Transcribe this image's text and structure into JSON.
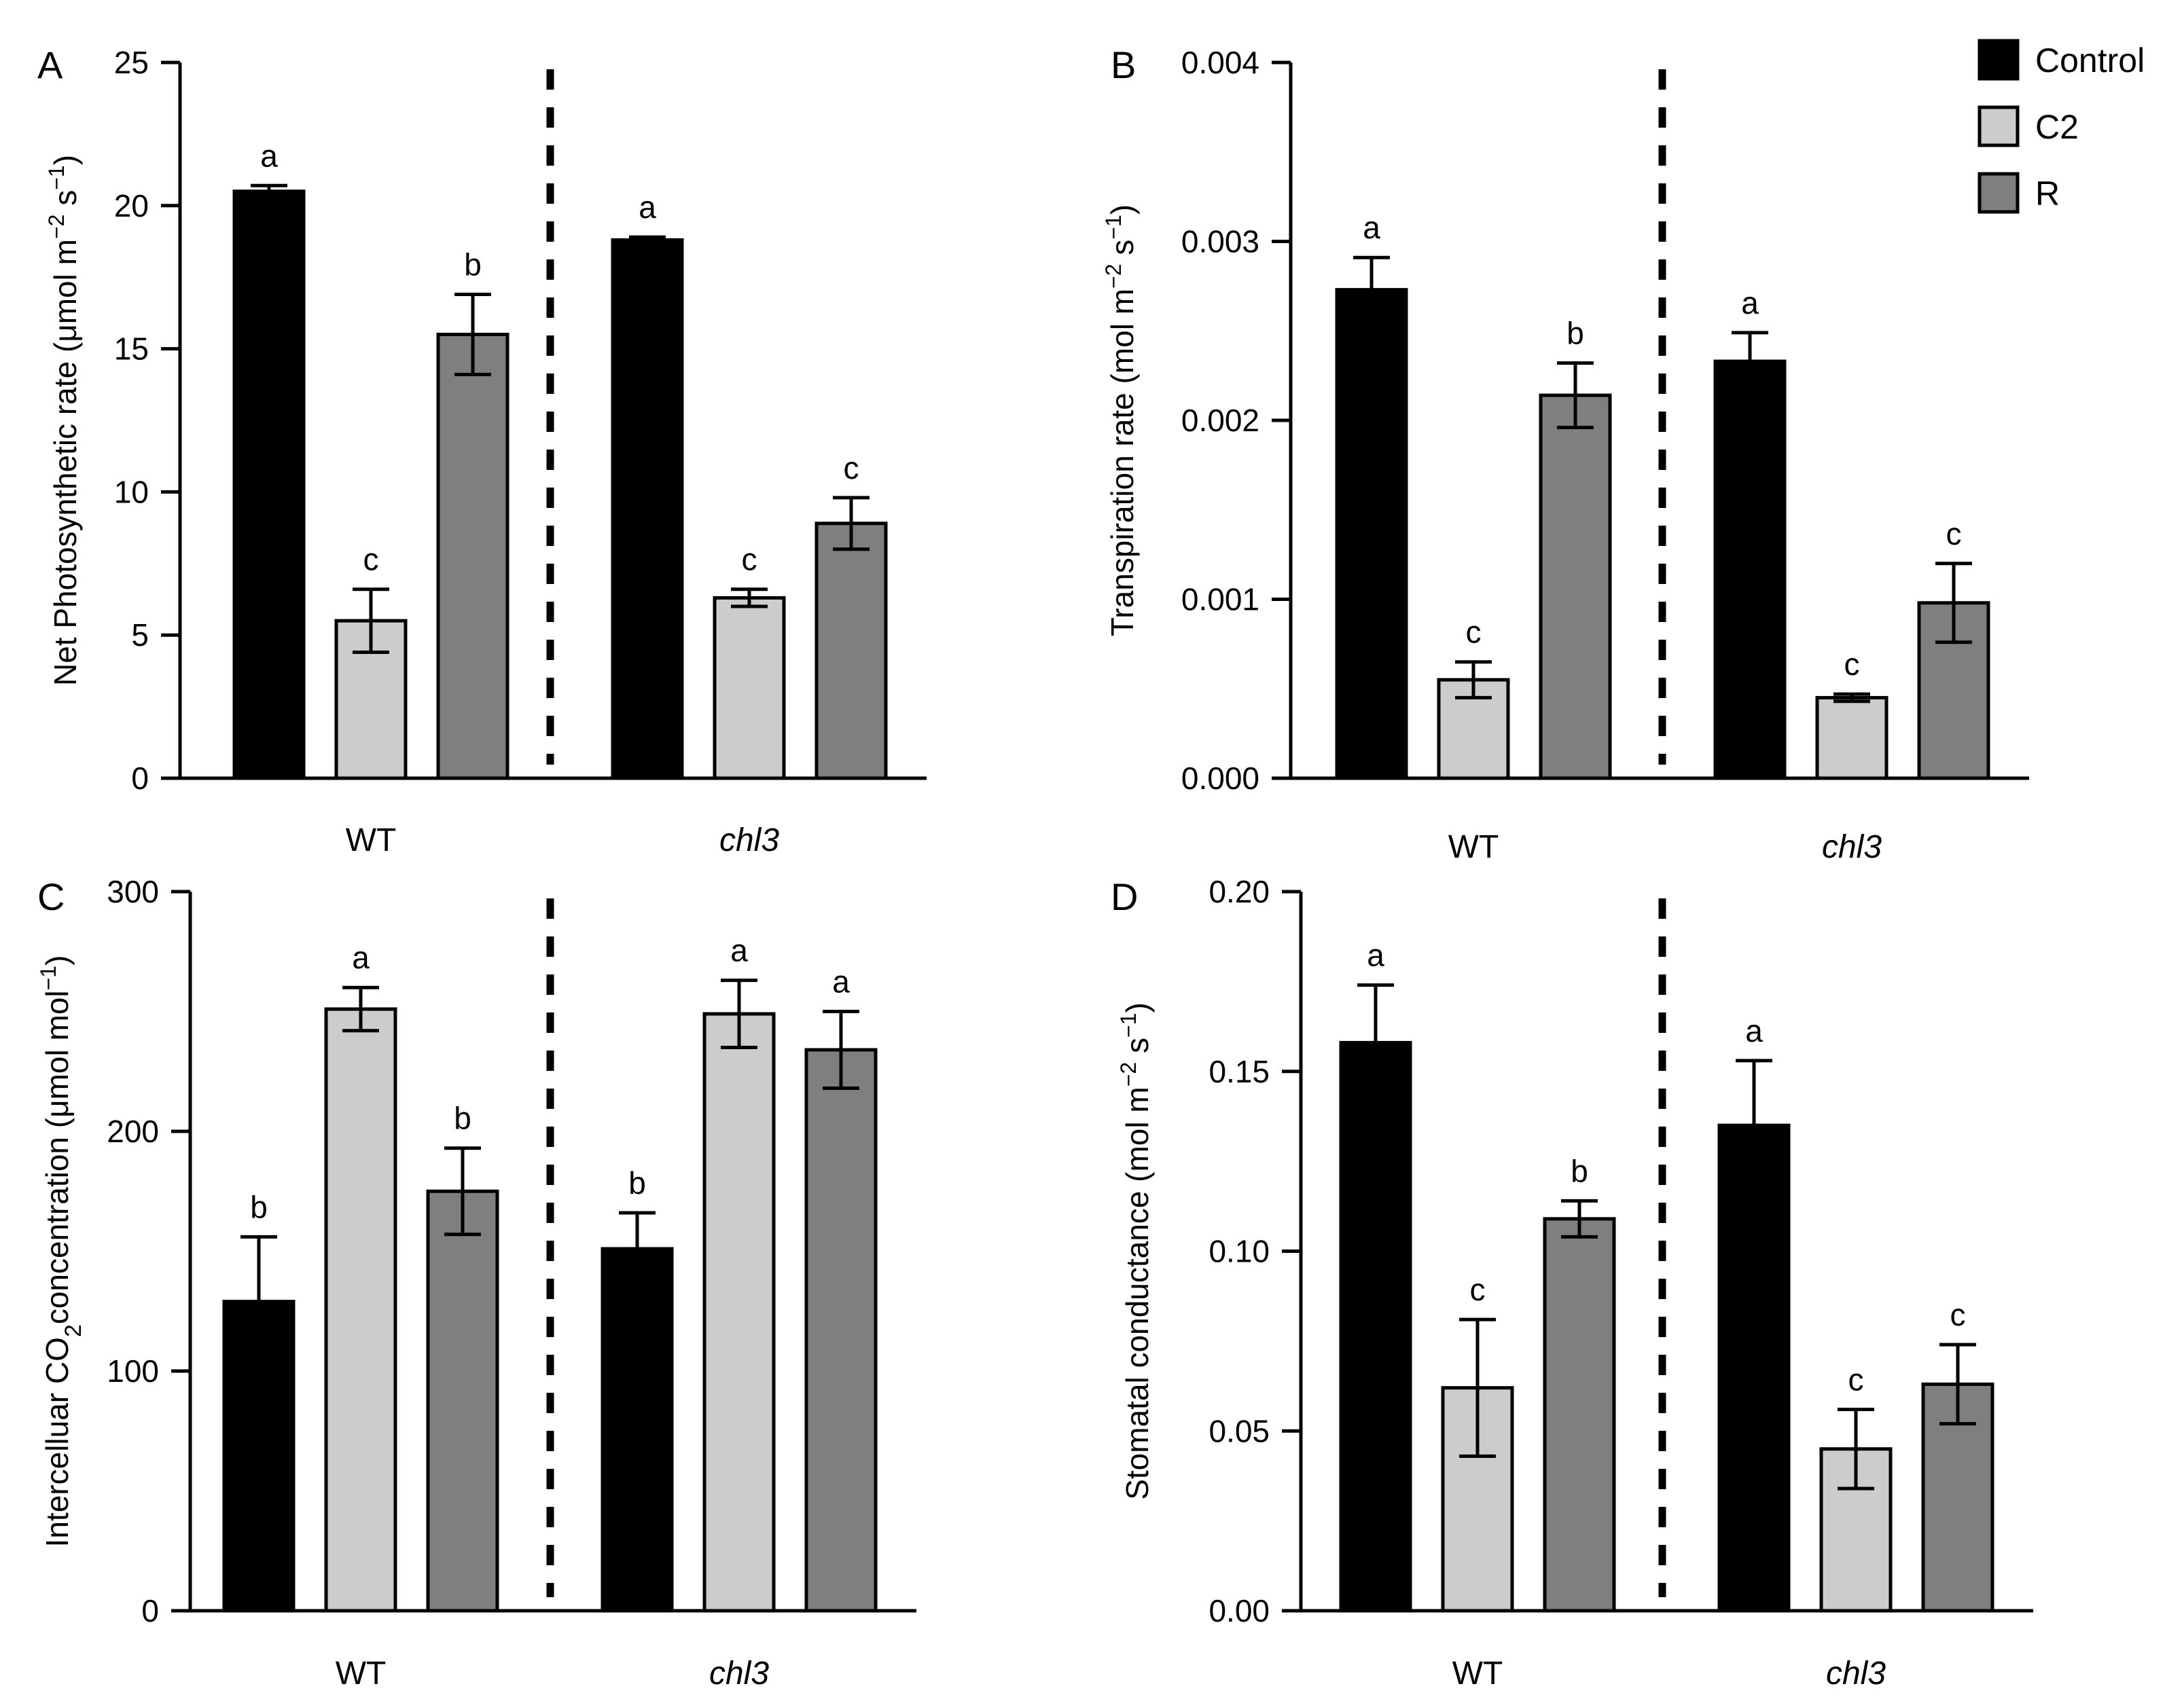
{
  "figure": {
    "background": "#ffffff"
  },
  "legend": [
    {
      "label": "Control",
      "color": "#000000"
    },
    {
      "label": "C2",
      "color": "#cccccc"
    },
    {
      "label": "R",
      "color": "#7f7f7f"
    }
  ],
  "chart_data": [
    {
      "panel": "A",
      "type": "bar",
      "ylabel_main": "Net Photosynthetic rate (μmol m",
      "ylabel_sup1": "−2",
      "ylabel_mid": " s",
      "ylabel_sup2": "−1",
      "ylabel_end": ")",
      "ylim": [
        0,
        25
      ],
      "yticks": [
        0,
        5,
        10,
        15,
        20,
        25
      ],
      "ytick_labels": [
        "0",
        "5",
        "10",
        "15",
        "20",
        "25"
      ],
      "groups": [
        {
          "label": "WT",
          "italic": false,
          "values": [
            20.5,
            5.5,
            15.5
          ],
          "errors": [
            0.2,
            1.1,
            1.4
          ],
          "letters": [
            "a",
            "c",
            "b"
          ]
        },
        {
          "label": "chl3",
          "italic": true,
          "values": [
            18.8,
            6.3,
            8.9
          ],
          "errors": [
            0.1,
            0.3,
            0.9
          ],
          "letters": [
            "a",
            "c",
            "c"
          ]
        }
      ]
    },
    {
      "panel": "B",
      "type": "bar",
      "ylabel_main": "Transpiration rate  (mol m",
      "ylabel_sup1": "−2",
      "ylabel_mid": " s",
      "ylabel_sup2": "−1",
      "ylabel_end": ")",
      "ylim": [
        0,
        0.004
      ],
      "yticks": [
        0,
        0.001,
        0.002,
        0.003,
        0.004
      ],
      "ytick_labels": [
        "0.000",
        "0.001",
        "0.002",
        "0.003",
        "0.004"
      ],
      "groups": [
        {
          "label": "WT",
          "italic": false,
          "values": [
            0.00273,
            0.00055,
            0.00214
          ],
          "errors": [
            0.00018,
            0.0001,
            0.00018
          ],
          "letters": [
            "a",
            "c",
            "b"
          ]
        },
        {
          "label": "chl3",
          "italic": true,
          "values": [
            0.00233,
            0.00045,
            0.00098
          ],
          "errors": [
            0.00016,
            2e-05,
            0.00022
          ],
          "letters": [
            "a",
            "c",
            "c"
          ]
        }
      ]
    },
    {
      "panel": "C",
      "type": "bar",
      "ylabel_main": "Intercelluar CO",
      "ylabel_sub": "2",
      "ylabel_mid2": "concentration (μmol mol",
      "ylabel_sup2": "−1",
      "ylabel_end": ")",
      "ylim": [
        0,
        300
      ],
      "yticks": [
        0,
        100,
        200,
        300
      ],
      "ytick_labels": [
        "0",
        "100",
        "200",
        "300"
      ],
      "groups": [
        {
          "label": "WT",
          "italic": false,
          "values": [
            129,
            251,
            175
          ],
          "errors": [
            27,
            9,
            18
          ],
          "letters": [
            "b",
            "a",
            "b"
          ]
        },
        {
          "label": "chl3",
          "italic": true,
          "values": [
            151,
            249,
            234
          ],
          "errors": [
            15,
            14,
            16
          ],
          "letters": [
            "b",
            "a",
            "a"
          ]
        }
      ]
    },
    {
      "panel": "D",
      "type": "bar",
      "ylabel_main": "Stomatal conductance  (mol m",
      "ylabel_sup1": "−2",
      "ylabel_mid": " s",
      "ylabel_sup2": "−1",
      "ylabel_end": ")",
      "ylim": [
        0,
        0.2
      ],
      "yticks": [
        0,
        0.05,
        0.1,
        0.15,
        0.2
      ],
      "ytick_labels": [
        "0.00",
        "0.05",
        "0.10",
        "0.15",
        "0.20"
      ],
      "groups": [
        {
          "label": "WT",
          "italic": false,
          "values": [
            0.158,
            0.062,
            0.109
          ],
          "errors": [
            0.016,
            0.019,
            0.005
          ],
          "letters": [
            "a",
            "c",
            "b"
          ]
        },
        {
          "label": "chl3",
          "italic": true,
          "values": [
            0.135,
            0.045,
            0.063
          ],
          "errors": [
            0.018,
            0.011,
            0.011
          ],
          "letters": [
            "a",
            "c",
            "c"
          ]
        }
      ]
    }
  ]
}
